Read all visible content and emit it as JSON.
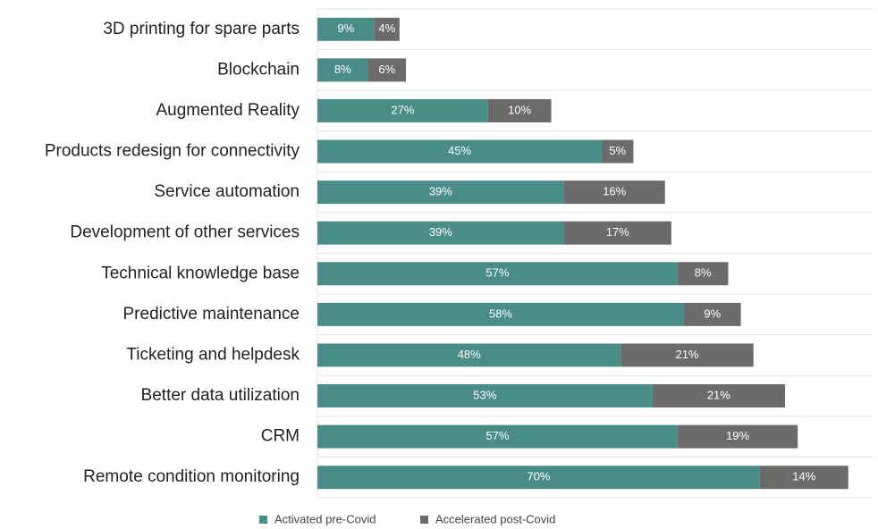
{
  "chart_data": {
    "type": "stacked-bar-horizontal",
    "categories": [
      "3D printing for spare parts",
      "Blockchain",
      "Augmented Reality",
      "Products redesign for connectivity",
      "Service automation",
      "Development of other services",
      "Technical knowledge base",
      "Predictive maintenance",
      "Ticketing and helpdesk",
      "Better data utilization",
      "CRM",
      "Remote condition monitoring"
    ],
    "series": [
      {
        "name": "Activated pre-Covid",
        "color": "#4a8c87",
        "values": [
          9,
          8,
          27,
          45,
          39,
          39,
          57,
          58,
          48,
          53,
          57,
          70
        ],
        "value_labels": [
          "9%",
          "8%",
          "27%",
          "45%",
          "39%",
          "39%",
          "57%",
          "58%",
          "48%",
          "53%",
          "57%",
          "70%"
        ]
      },
      {
        "name": "Accelerated post-Covid",
        "color": "#6b6b6b",
        "values": [
          4,
          6,
          10,
          5,
          16,
          17,
          8,
          9,
          21,
          21,
          19,
          14
        ],
        "value_labels": [
          "4%",
          "6%",
          "10%",
          "5%",
          "16%",
          "17%",
          "8%",
          "9%",
          "21%",
          "21%",
          "19%",
          "14%"
        ]
      }
    ],
    "xlim": [
      0,
      88
    ],
    "legend": "bottom"
  }
}
